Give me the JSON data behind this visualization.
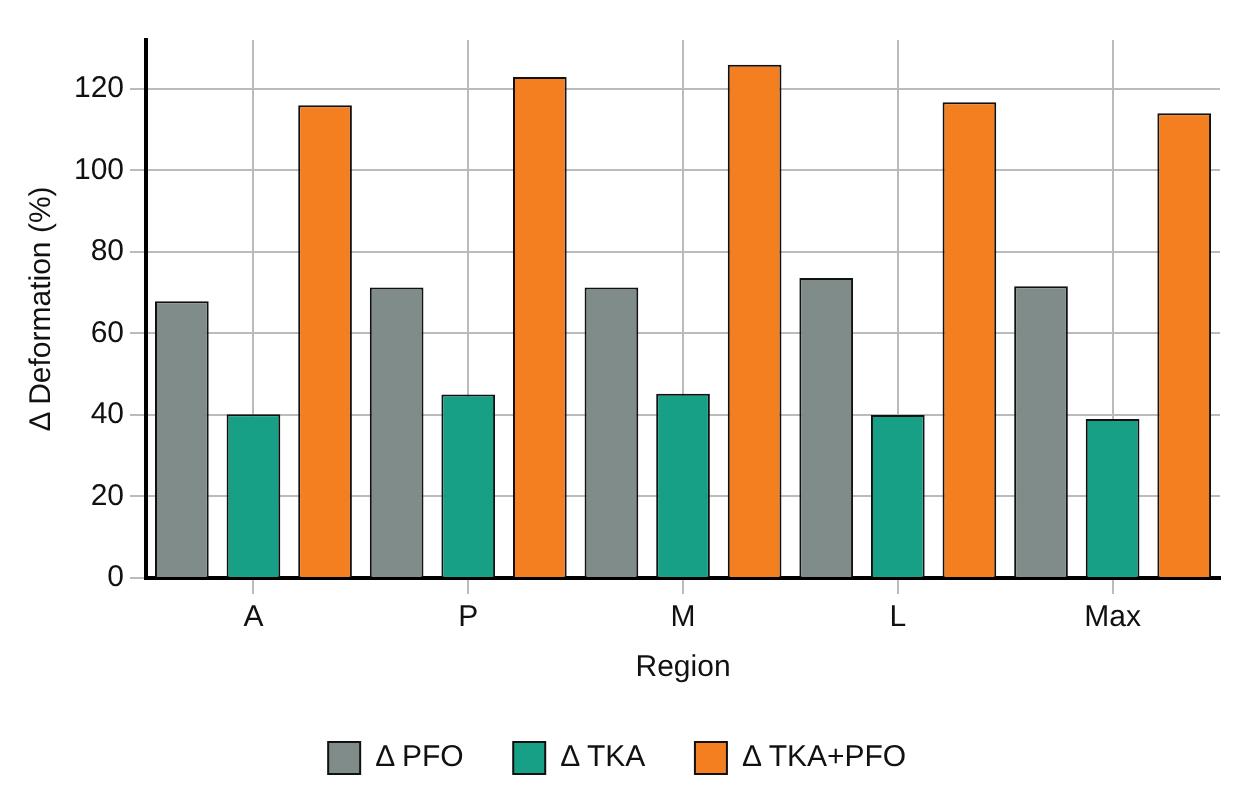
{
  "chart_data": {
    "type": "bar",
    "xlabel": "Region",
    "ylabel": "Δ Deformation (%)",
    "categories": [
      "A",
      "P",
      "M",
      "L",
      "Max"
    ],
    "series": [
      {
        "name": "Δ PFO",
        "color": "#7f8c8a",
        "values": [
          67.9,
          71.3,
          71.3,
          73.6,
          71.6
        ]
      },
      {
        "name": "Δ TKA",
        "color": "#17a086",
        "values": [
          40.2,
          45.0,
          45.2,
          40.0,
          39.0
        ]
      },
      {
        "name": "Δ TKA+PFO",
        "color": "#f47f20",
        "values": [
          116.0,
          122.9,
          125.9,
          116.7,
          114.0
        ]
      }
    ],
    "ylim": [
      0,
      132
    ],
    "yticks": [
      0,
      20,
      40,
      60,
      80,
      100,
      120
    ],
    "grid": true,
    "legend": "bottom"
  }
}
